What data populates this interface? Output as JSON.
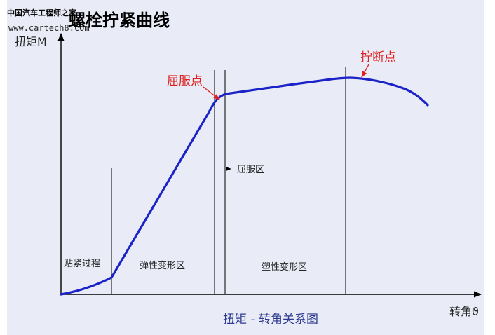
{
  "title": "螺栓拧紧曲线",
  "watermark": {
    "line1": "中国汽车工程师之家",
    "line2": "www.cartech8.com"
  },
  "axes": {
    "y_label": "扭矩M",
    "x_label": "转角ϑ"
  },
  "zones": {
    "snug": "贴紧过程",
    "elastic": "弹性变形区",
    "yield": "屈服区",
    "plastic": "塑性变形区"
  },
  "callouts": {
    "yield_point": "屈服点",
    "break_point": "拧断点"
  },
  "caption": "扭矩 - 转角关系图",
  "colors": {
    "curve": "#1a22c8",
    "callout": "#e02020",
    "caption": "#2e3a92",
    "panel": "#e9ecf6"
  }
}
